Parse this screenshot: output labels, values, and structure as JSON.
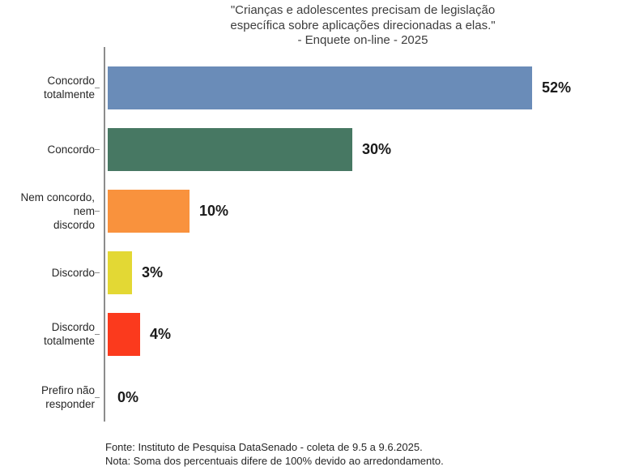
{
  "title": {
    "line1": "\"Crianças e adolescentes precisam de legislação",
    "line2": "específica sobre aplicações direcionadas a elas.\"",
    "line3": "- Enquete on-line - 2025"
  },
  "chart_data": {
    "type": "bar",
    "orientation": "horizontal",
    "title": "\"Crianças e adolescentes precisam de legislação específica sobre aplicações direcionadas a elas.\" - Enquete on-line - 2025",
    "categories": [
      "Concordo\ntotalmente",
      "Concordo",
      "Nem concordo, nem\ndiscordo",
      "Discordo",
      "Discordo\ntotalmente",
      "Prefiro não\nresponder"
    ],
    "values": [
      52,
      30,
      10,
      3,
      4,
      0
    ],
    "value_labels": [
      "52%",
      "30%",
      "10%",
      "3%",
      "4%",
      "0%"
    ],
    "colors": [
      "#6a8cb8",
      "#477863",
      "#f9923d",
      "#e3d834",
      "#fb3a1d",
      "#ffffff"
    ],
    "xlim": [
      0,
      60
    ],
    "grid": false,
    "legend": "none",
    "axis_color": "#8c8c8c"
  },
  "footer": {
    "fonte": "Fonte: Instituto de Pesquisa DataSenado - coleta de 9.5 a 9.6.2025.",
    "nota": "Nota: Soma dos percentuais difere de 100% devido ao arredondamento."
  }
}
